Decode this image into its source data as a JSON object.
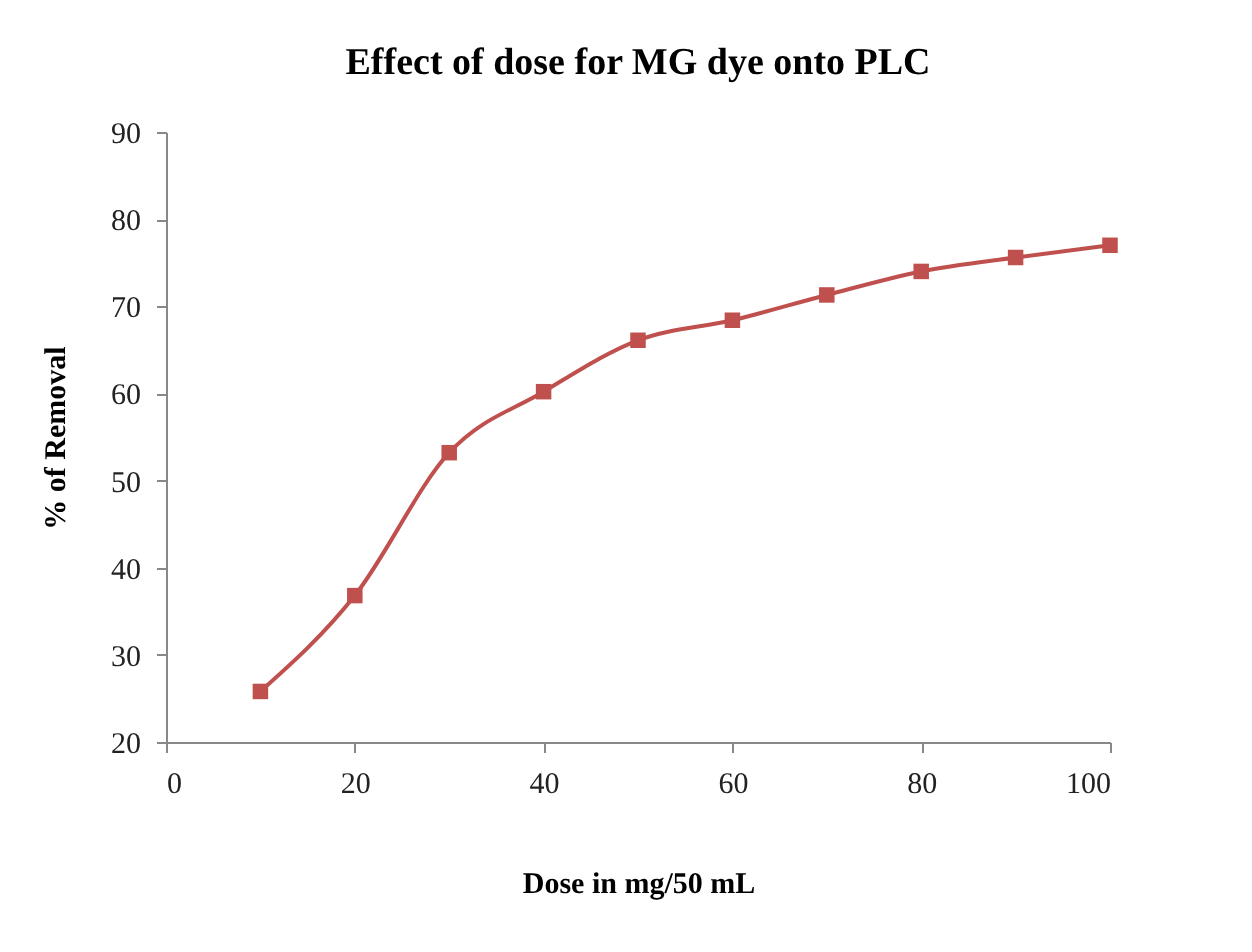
{
  "chart_data": {
    "type": "line",
    "title": "Effect of dose for MG dye onto PLC",
    "xlabel": "Dose in mg/50 mL",
    "ylabel": "% of  Removal",
    "x": [
      10,
      20,
      30,
      40,
      50,
      60,
      70,
      80,
      90,
      100
    ],
    "series": [
      {
        "color": "#c0504d",
        "values": [
          25.8,
          36.8,
          53.2,
          60.2,
          66.1,
          68.4,
          71.3,
          74.0,
          75.6,
          77.0
        ]
      }
    ],
    "xlim": [
      0,
      100
    ],
    "xticks": [
      0,
      20,
      40,
      60,
      80,
      100
    ],
    "ylim": [
      20,
      90
    ],
    "yticks": [
      20,
      30,
      40,
      50,
      60,
      70,
      80,
      90
    ],
    "grid": false,
    "marker": "square",
    "line_style": "solid"
  }
}
